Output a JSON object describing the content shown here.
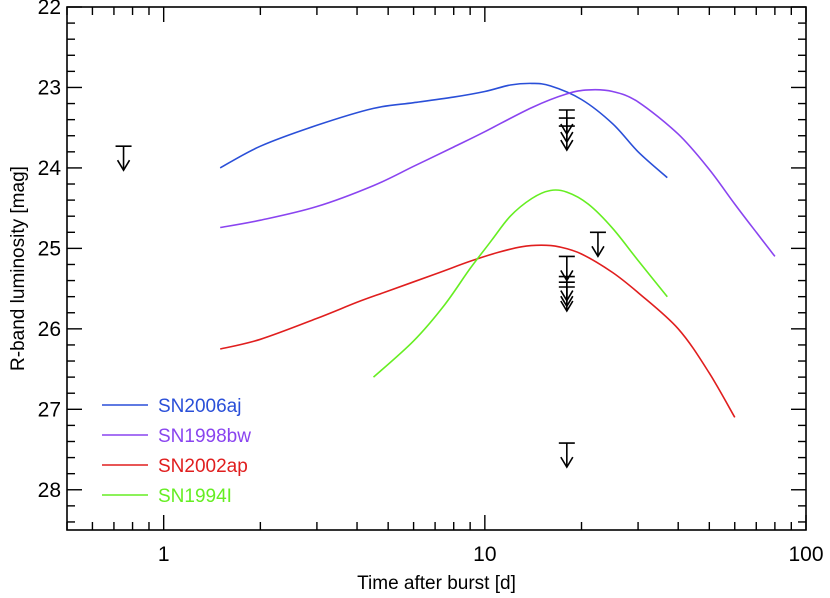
{
  "chart_data": {
    "type": "line",
    "title": "",
    "xlabel": "Time after burst [d]",
    "ylabel": "R-band luminosity [mag]",
    "xscale": "log",
    "xlim": [
      0.5,
      100
    ],
    "ylim": [
      28.5,
      22
    ],
    "y_inverted": true,
    "grid": false,
    "legend_position": "bottom-left",
    "x_major_ticks": [
      1,
      10,
      100
    ],
    "x_tick_labels": [
      "1",
      "10",
      "100"
    ],
    "y_major_ticks": [
      22,
      23,
      24,
      25,
      26,
      27,
      28
    ],
    "y_tick_labels": [
      "22",
      "23",
      "24",
      "25",
      "26",
      "27",
      "28"
    ],
    "series": [
      {
        "name": "SN2006aj",
        "color": "#2a4fd8",
        "points": [
          [
            1.5,
            24.0
          ],
          [
            2.0,
            23.73
          ],
          [
            3.0,
            23.47
          ],
          [
            4.5,
            23.26
          ],
          [
            6.0,
            23.19
          ],
          [
            8.0,
            23.12
          ],
          [
            10.0,
            23.05
          ],
          [
            12.0,
            22.97
          ],
          [
            14.0,
            22.95
          ],
          [
            16.0,
            22.98
          ],
          [
            20.0,
            23.15
          ],
          [
            25.0,
            23.45
          ],
          [
            30.0,
            23.8
          ],
          [
            37.0,
            24.12
          ]
        ]
      },
      {
        "name": "SN1998bw",
        "color": "#8a44f0",
        "points": [
          [
            1.5,
            24.74
          ],
          [
            2.0,
            24.65
          ],
          [
            3.0,
            24.48
          ],
          [
            4.5,
            24.22
          ],
          [
            6.0,
            23.98
          ],
          [
            8.0,
            23.74
          ],
          [
            10.0,
            23.55
          ],
          [
            14.0,
            23.25
          ],
          [
            18.0,
            23.08
          ],
          [
            21.0,
            23.03
          ],
          [
            25.0,
            23.05
          ],
          [
            30.0,
            23.18
          ],
          [
            40.0,
            23.58
          ],
          [
            50.0,
            24.02
          ],
          [
            60.0,
            24.45
          ],
          [
            70.0,
            24.8
          ],
          [
            80.0,
            25.1
          ]
        ]
      },
      {
        "name": "SN2002ap",
        "color": "#e01e1e",
        "points": [
          [
            1.5,
            26.25
          ],
          [
            2.0,
            26.13
          ],
          [
            3.0,
            25.87
          ],
          [
            4.0,
            25.67
          ],
          [
            5.0,
            25.53
          ],
          [
            7.0,
            25.32
          ],
          [
            9.0,
            25.16
          ],
          [
            11.0,
            25.05
          ],
          [
            13.0,
            24.98
          ],
          [
            15.0,
            24.96
          ],
          [
            17.0,
            24.98
          ],
          [
            20.0,
            25.07
          ],
          [
            25.0,
            25.3
          ],
          [
            30.0,
            25.55
          ],
          [
            40.0,
            26.0
          ],
          [
            50.0,
            26.55
          ],
          [
            60.0,
            27.1
          ]
        ]
      },
      {
        "name": "SN1994I",
        "color": "#66ee22",
        "points": [
          [
            4.5,
            26.6
          ],
          [
            6.0,
            26.15
          ],
          [
            7.5,
            25.7
          ],
          [
            9.0,
            25.25
          ],
          [
            10.5,
            24.9
          ],
          [
            12.0,
            24.6
          ],
          [
            14.0,
            24.38
          ],
          [
            16.0,
            24.28
          ],
          [
            18.0,
            24.3
          ],
          [
            21.0,
            24.45
          ],
          [
            25.0,
            24.75
          ],
          [
            30.0,
            25.15
          ],
          [
            37.0,
            25.6
          ]
        ]
      }
    ],
    "upper_limits": [
      {
        "t": 0.75,
        "mag": 23.73
      },
      {
        "t": 18.0,
        "mag": 23.28
      },
      {
        "t": 18.0,
        "mag": 23.38
      },
      {
        "t": 18.0,
        "mag": 23.48
      },
      {
        "t": 22.5,
        "mag": 24.8
      },
      {
        "t": 18.0,
        "mag": 25.1
      },
      {
        "t": 18.0,
        "mag": 25.35
      },
      {
        "t": 18.0,
        "mag": 25.42
      },
      {
        "t": 18.0,
        "mag": 25.48
      },
      {
        "t": 18.0,
        "mag": 27.42
      }
    ]
  }
}
